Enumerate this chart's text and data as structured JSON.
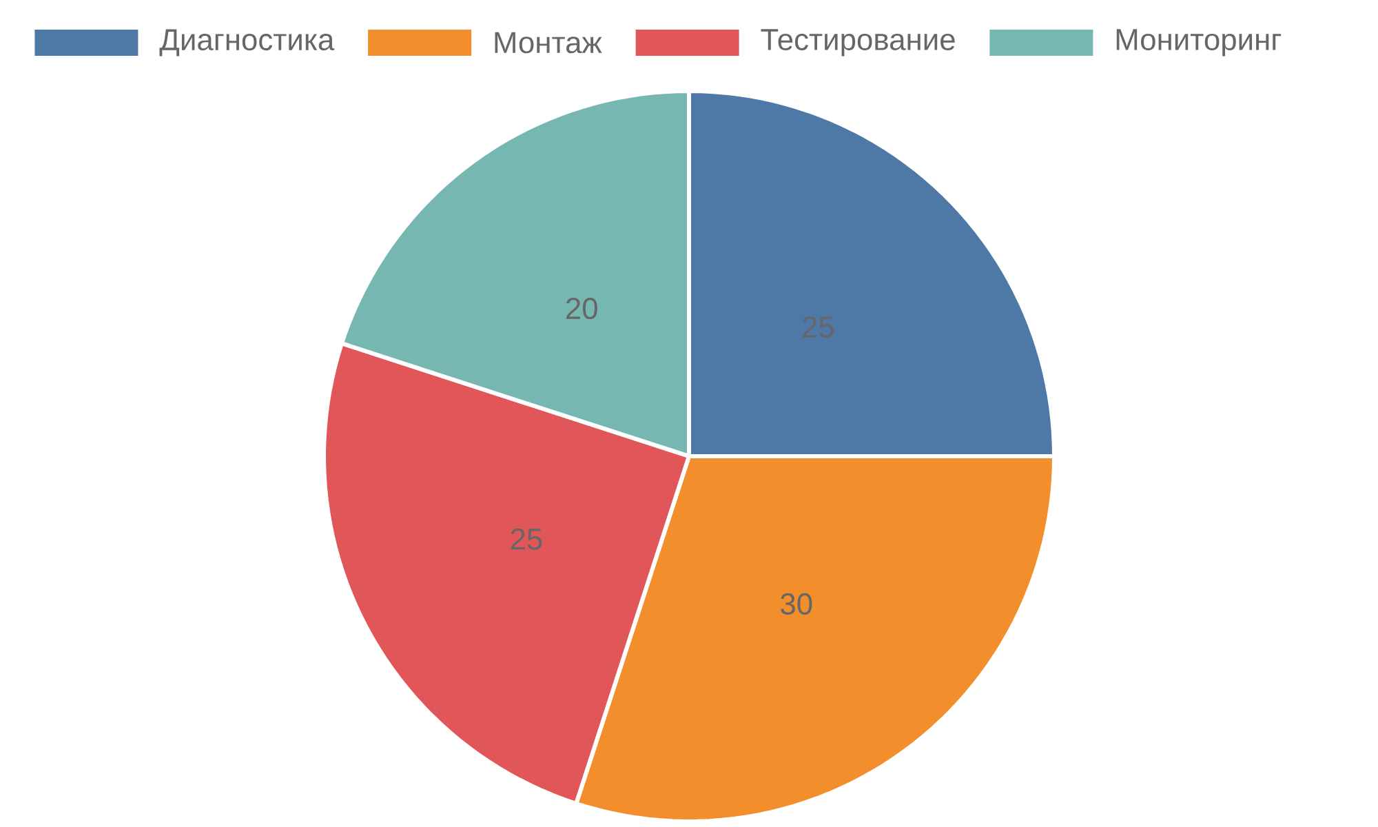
{
  "chart_data": {
    "type": "pie",
    "categories": [
      "Диагностика",
      "Монтаж",
      "Тестирование",
      "Мониторинг"
    ],
    "values": [
      25,
      30,
      25,
      20
    ],
    "colors": [
      "#4e79a7",
      "#f28e2b",
      "#e15759",
      "#76b7b2"
    ],
    "data_labels": true,
    "legend": "top"
  }
}
